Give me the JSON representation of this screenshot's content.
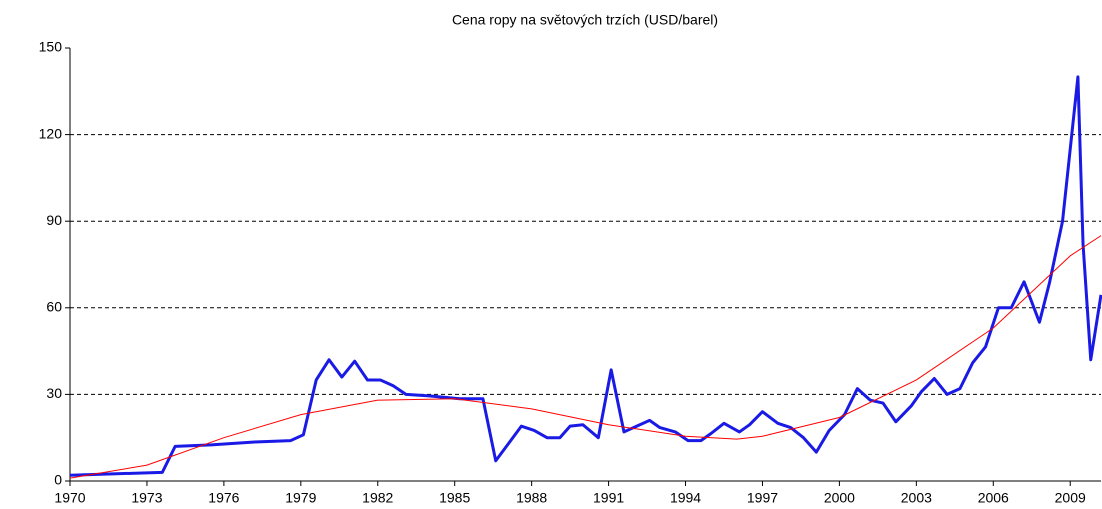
{
  "chart_data": {
    "type": "line",
    "title": "Cena ropy na světových trzích  (USD/barel)",
    "xlim": [
      1970,
      2010.2
    ],
    "xticks": [
      1970,
      1973,
      1976,
      1979,
      1982,
      1985,
      1988,
      1991,
      1994,
      1997,
      2000,
      2003,
      2006,
      2009
    ],
    "ylim": [
      0,
      150
    ],
    "yticks": [
      0,
      30,
      60,
      90,
      120,
      150
    ],
    "grid": true,
    "series": [
      {
        "color": "#1a1ae6",
        "x": [
          1970,
          1973.6,
          1974.1,
          1975.5,
          1977.2,
          1978.6,
          1979.1,
          1979.6,
          1980.1,
          1980.6,
          1981.1,
          1981.6,
          1982.1,
          1982.6,
          1983.1,
          1984,
          1985.2,
          1986.1,
          1986.6,
          1987.6,
          1988.1,
          1988.6,
          1989.1,
          1989.5,
          1990,
          1990.6,
          1991.1,
          1991.6,
          1992.1,
          1992.6,
          1993,
          1993.6,
          1994.1,
          1994.6,
          1995,
          1995.5,
          1996.1,
          1996.5,
          1997,
          1997.6,
          1998.1,
          1998.6,
          1999.1,
          1999.6,
          2000.2,
          2000.7,
          2001.2,
          2001.7,
          2002.2,
          2002.8,
          2003.2,
          2003.7,
          2004.2,
          2004.7,
          2005.2,
          2005.7,
          2006.2,
          2006.7,
          2007.2,
          2007.8,
          2008.2,
          2008.7,
          2009.3,
          2009.5,
          2009.8,
          2010.2
        ],
        "values": [
          2,
          3,
          12,
          12.5,
          13.5,
          14,
          16,
          35,
          42,
          36,
          41.5,
          35,
          35,
          33,
          30,
          29.5,
          28.5,
          28.5,
          7,
          19,
          17.5,
          15,
          15,
          19,
          19.5,
          15,
          38.5,
          17,
          19,
          21,
          18.5,
          17,
          14,
          14,
          16.5,
          20,
          17,
          19.5,
          24,
          20,
          18.5,
          15,
          10,
          17.5,
          23,
          32,
          28,
          27,
          20.5,
          26,
          31,
          35.5,
          30,
          32,
          41,
          46.5,
          60,
          60,
          69,
          55,
          69,
          90,
          140,
          82,
          42,
          64.5
        ]
      },
      {
        "color": "#ff0000",
        "x": [
          1970,
          1973,
          1976,
          1979,
          1982,
          1985,
          1988,
          1991,
          1994,
          1996,
          1997,
          2000,
          2003,
          2006,
          2009,
          2010.2
        ],
        "values": [
          1,
          5.5,
          15,
          23,
          28,
          28.5,
          25,
          19.5,
          15.5,
          14.5,
          15.5,
          22,
          35,
          53,
          78,
          85
        ]
      }
    ]
  }
}
